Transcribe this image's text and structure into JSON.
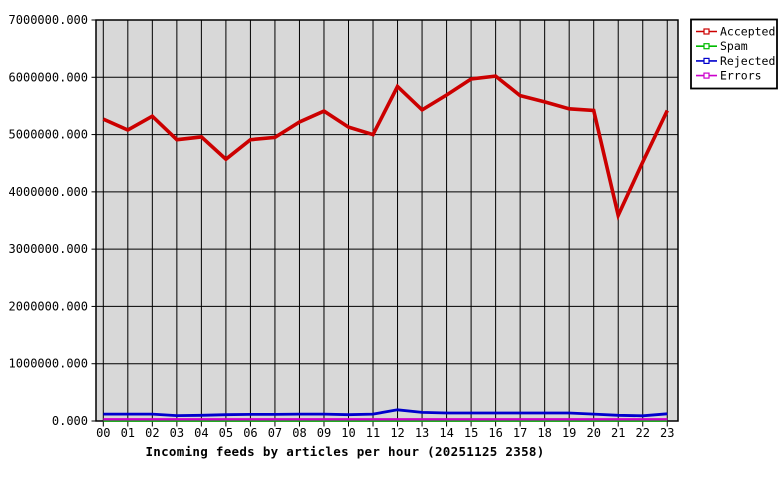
{
  "chart_data": {
    "type": "line",
    "title": "Incoming feeds by articles per hour (20251125 2358)",
    "xlabel": "",
    "ylabel": "",
    "ylim": [
      0,
      7000000
    ],
    "ytick_step": 1000000,
    "ytick_labels": [
      "0.000",
      "1000000.000",
      "2000000.000",
      "3000000.000",
      "4000000.000",
      "5000000.000",
      "6000000.000",
      "7000000.000"
    ],
    "x_labels": [
      "00",
      "01",
      "02",
      "03",
      "04",
      "05",
      "06",
      "07",
      "08",
      "09",
      "10",
      "11",
      "12",
      "13",
      "14",
      "15",
      "16",
      "17",
      "18",
      "19",
      "20",
      "21",
      "22",
      "23"
    ],
    "grid": true,
    "plot_bg": "#d8d8d8",
    "grid_color": "#000000",
    "legend_position": "top-right",
    "series": [
      {
        "name": "Accepted",
        "color": "#cc0000",
        "values": [
          5270000,
          5080000,
          5320000,
          4910000,
          4960000,
          4570000,
          4910000,
          4950000,
          5220000,
          5410000,
          5130000,
          5000000,
          5840000,
          5430000,
          5690000,
          5970000,
          6020000,
          5680000,
          5570000,
          5450000,
          5420000,
          3590000,
          4520000,
          5420000
        ]
      },
      {
        "name": "Spam",
        "color": "#00bb00",
        "values": [
          0,
          0,
          0,
          0,
          0,
          0,
          0,
          0,
          0,
          0,
          0,
          0,
          0,
          0,
          0,
          0,
          0,
          0,
          0,
          0,
          0,
          0,
          0,
          0
        ]
      },
      {
        "name": "Rejected",
        "color": "#0000cc",
        "values": [
          120000,
          120000,
          120000,
          95000,
          100000,
          110000,
          115000,
          115000,
          120000,
          120000,
          110000,
          120000,
          195000,
          150000,
          140000,
          140000,
          140000,
          140000,
          140000,
          140000,
          120000,
          100000,
          90000,
          125000
        ]
      },
      {
        "name": "Errors",
        "color": "#cc00cc",
        "values": [
          30000,
          30000,
          30000,
          30000,
          30000,
          30000,
          30000,
          30000,
          30000,
          30000,
          30000,
          30000,
          30000,
          30000,
          30000,
          30000,
          30000,
          30000,
          30000,
          30000,
          30000,
          30000,
          30000,
          30000
        ]
      }
    ]
  }
}
